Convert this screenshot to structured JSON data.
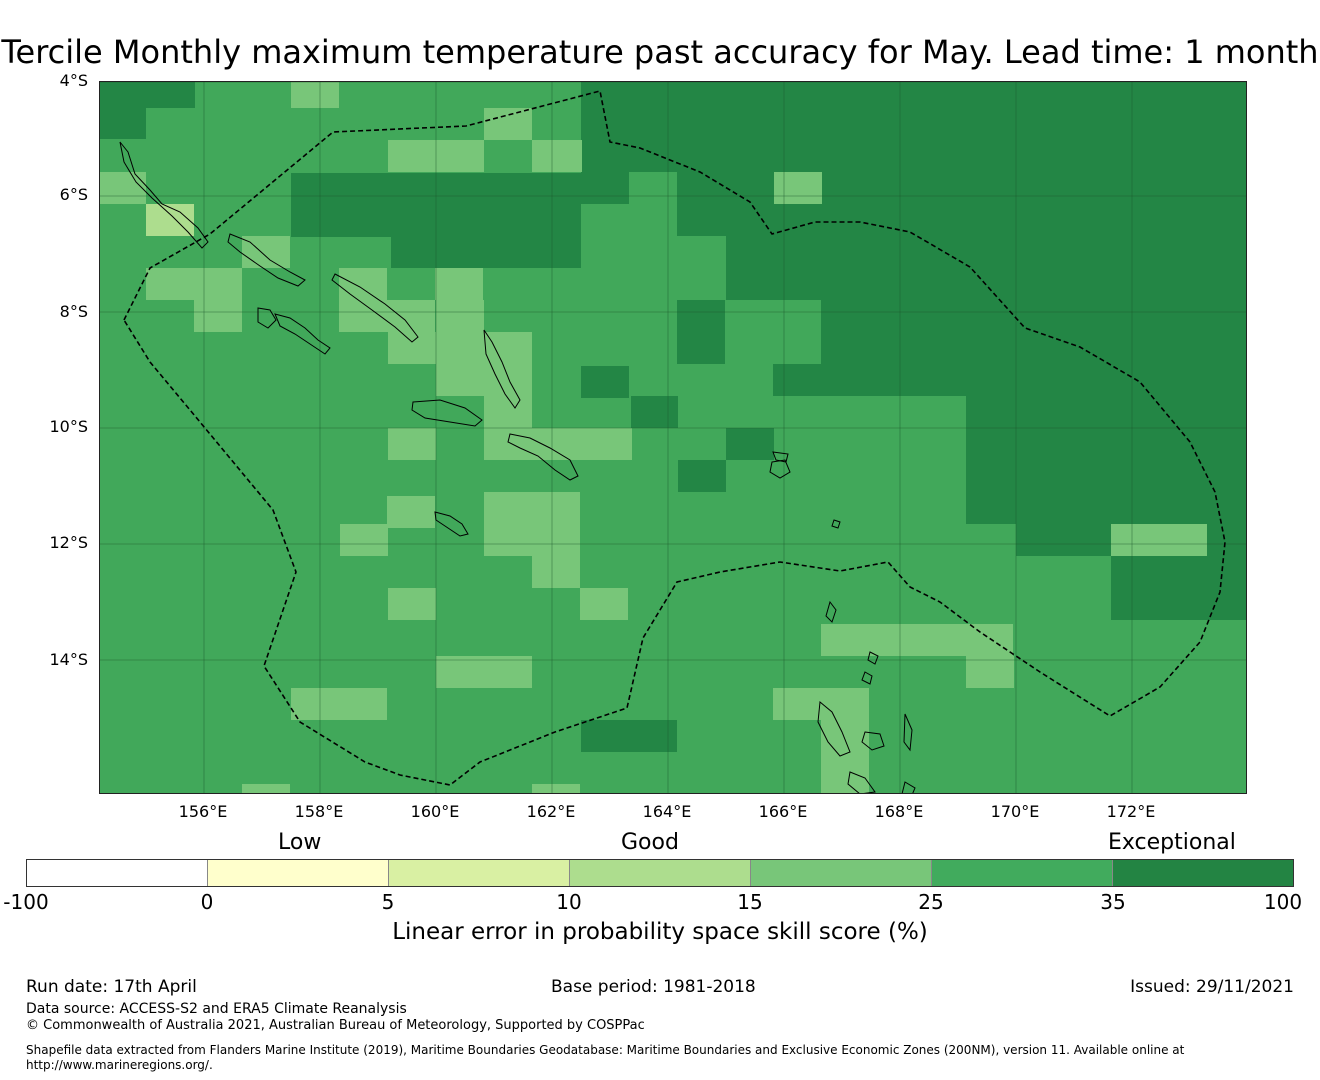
{
  "title": "Tercile Monthly maximum temperature past accuracy for May. Lead time: 1 month",
  "map": {
    "lat_labels": [
      "4°S",
      "6°S",
      "8°S",
      "10°S",
      "12°S",
      "14°S"
    ],
    "lon_labels": [
      "156°E",
      "158°E",
      "160°E",
      "162°E",
      "164°E",
      "166°E",
      "168°E",
      "170°E",
      "172°E"
    ],
    "extent": {
      "lon_min": 154.2,
      "lon_max": 174.0,
      "lat_min": -16.3,
      "lat_max": -4.0
    },
    "cell_colors": {
      "25-35": "#41a85a",
      "35-100": "#238645",
      "15-25": "#78c679",
      "10-15": "#addd8e"
    }
  },
  "colorbar": {
    "category_labels": [
      "Low",
      "Good",
      "Exceptional"
    ],
    "ticks": [
      "-100",
      "0",
      "5",
      "10",
      "15",
      "25",
      "35",
      "100"
    ],
    "colors": [
      "#ffffff",
      "#ffffcc",
      "#d9f0a3",
      "#addd8e",
      "#78c679",
      "#41ab5d",
      "#238443"
    ],
    "title": "Linear error in probability space skill score (%)"
  },
  "footer": {
    "run_date": "Run date: 17th April",
    "base_period": "Base period: 1981-2018",
    "issued": "Issued: 29/11/2021",
    "data_source": "Data source: ACCESS-S2 and ERA5 Climate Reanalysis",
    "copyright": "© Commonwealth of Australia 2021, Australian Bureau of Meteorology, Supported by COSPPac",
    "shapefile_line1": "Shapefile data extracted from Flanders Marine Institute (2019), Maritime Boundaries Geodatabase: Maritime Boundaries and Exclusive Economic Zones (200NM), version 11. Available online at",
    "shapefile_line2": "http://www.marineregions.org/."
  }
}
